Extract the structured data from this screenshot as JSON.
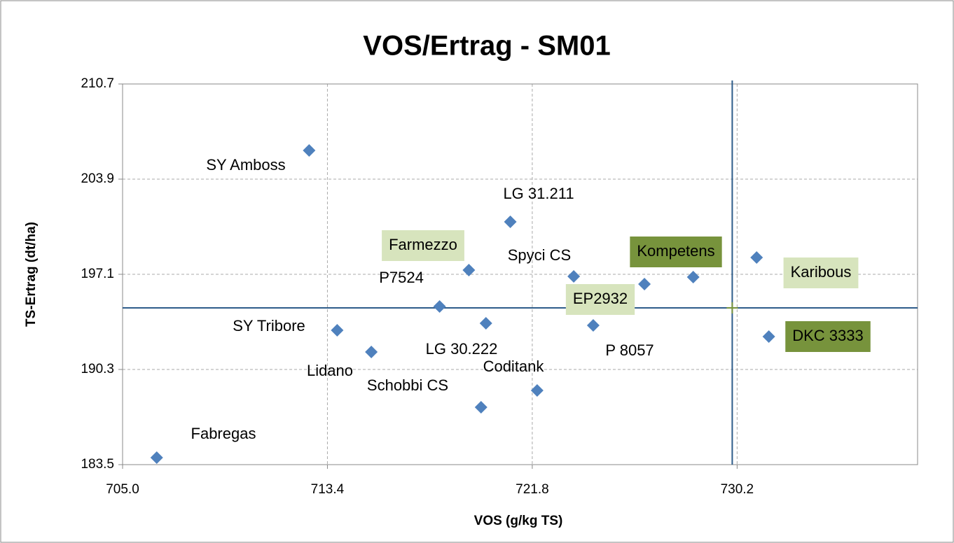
{
  "chart_data": {
    "type": "scatter",
    "title": "VOS/Ertrag - SM01",
    "x_label": "VOS (g/kg TS)",
    "y_label": "TS-Ertrag  (dt/ha)",
    "point_labels": [
      "Fabregas",
      "SY Amboss",
      "LG 31.211",
      "Farmezzo",
      "P7524",
      "LG 30.222",
      "SY Tribore",
      "Lidano",
      "Schobbi CS",
      "Coditank",
      "Spyci CS",
      "P 8057",
      "EP2932",
      "Kompetens",
      "Karibous",
      "DKC 3333"
    ],
    "x": [
      706.4,
      712.65,
      720.9,
      719.2,
      718.0,
      719.9,
      713.8,
      715.2,
      719.7,
      722.0,
      723.5,
      724.3,
      726.4,
      728.4,
      731.0,
      731.5
    ],
    "values": [
      184.0,
      205.95,
      200.85,
      197.4,
      194.8,
      193.6,
      193.1,
      191.55,
      187.6,
      188.8,
      196.95,
      193.45,
      196.4,
      196.9,
      198.3,
      192.65
    ],
    "color": "#4f81bd",
    "light_highlight": [
      "Farmezzo",
      "EP2932",
      "Karibous"
    ],
    "light_highlight_color": "#d7e4bd",
    "dark_highlight": [
      "Kompetens",
      "DKC 3333"
    ],
    "dark_highlight_color": "#77933c",
    "reference_x": 730.0,
    "reference_y": 194.7,
    "reference_color": "#2e5c8a",
    "xlim": [
      705.0,
      737.6
    ],
    "xticks": [
      {
        "value": 705.0,
        "label": "705.0"
      },
      {
        "value": 713.4,
        "label": "713.4"
      },
      {
        "value": 721.8,
        "label": "721.8"
      },
      {
        "value": 730.2,
        "label": "730.2"
      }
    ],
    "ylim": [
      183.5,
      210.7
    ],
    "yticks": [
      {
        "value": 183.5,
        "label": "183.5"
      },
      190.3,
      197.1,
      203.9,
      210.7
    ],
    "grid": true
  }
}
